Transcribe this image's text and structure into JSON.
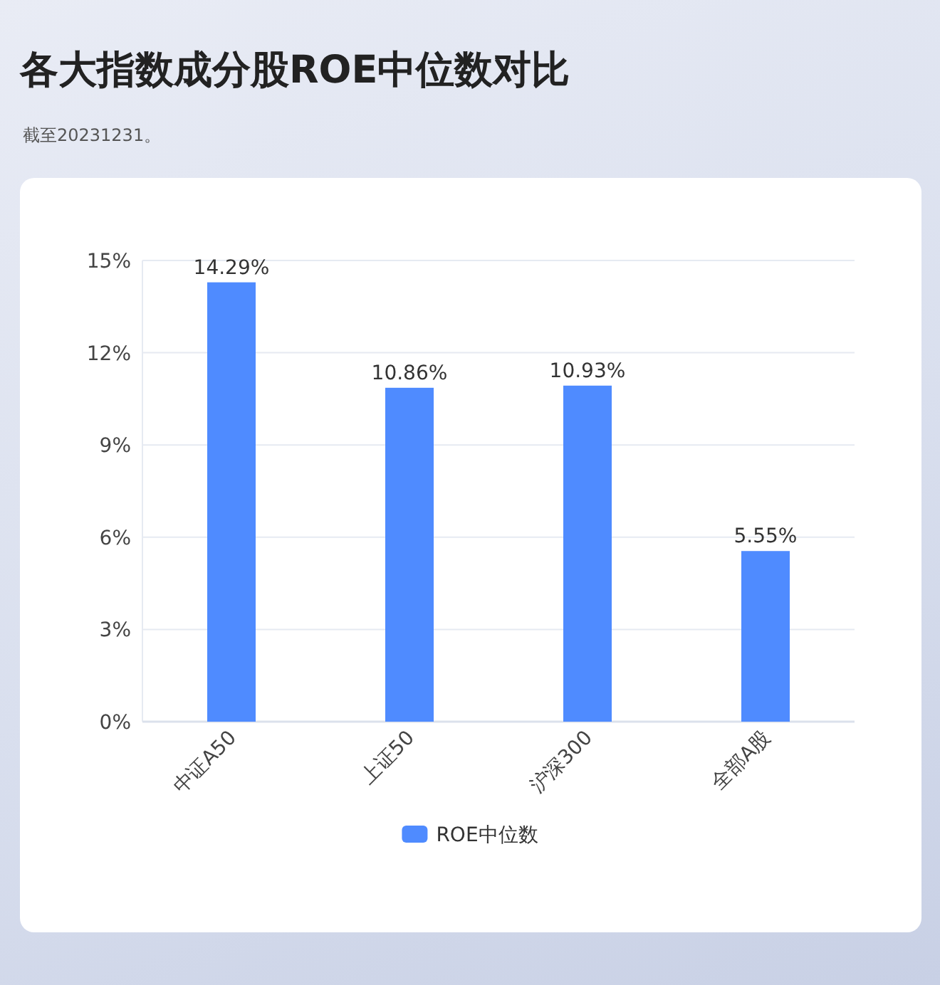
{
  "chart_data": {
    "type": "bar",
    "title": "各大指数成分股ROE中位数对比",
    "annotations": [
      "截至20231231。"
    ],
    "categories": [
      "中证A50",
      "上证50",
      "沪深300",
      "全部A股"
    ],
    "series": [
      {
        "name": "ROE中位数",
        "color": "#4f8bff",
        "values": [
          14.29,
          10.86,
          10.93,
          5.55
        ],
        "value_labels": [
          "14.29%",
          "10.86%",
          "10.93%",
          "5.55%"
        ]
      }
    ],
    "ylim": [
      0,
      15
    ],
    "yticks": [
      {
        "value": 0,
        "label": "0%"
      },
      {
        "value": 3,
        "label": "3%"
      },
      {
        "value": 6,
        "label": "6%"
      },
      {
        "value": 9,
        "label": "9%"
      },
      {
        "value": 12,
        "label": "12%"
      },
      {
        "value": 15,
        "label": "15%"
      }
    ],
    "grid": "y",
    "legend": "bottom"
  }
}
